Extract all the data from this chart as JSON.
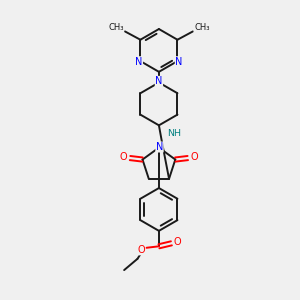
{
  "bg_color": "#f0f0f0",
  "bond_color": "#1a1a1a",
  "N_color": "#0000ff",
  "O_color": "#ff0000",
  "NH_color": "#008080",
  "figsize": [
    3.0,
    3.0
  ],
  "dpi": 100,
  "xlim": [
    0,
    10
  ],
  "ylim": [
    0,
    10
  ]
}
